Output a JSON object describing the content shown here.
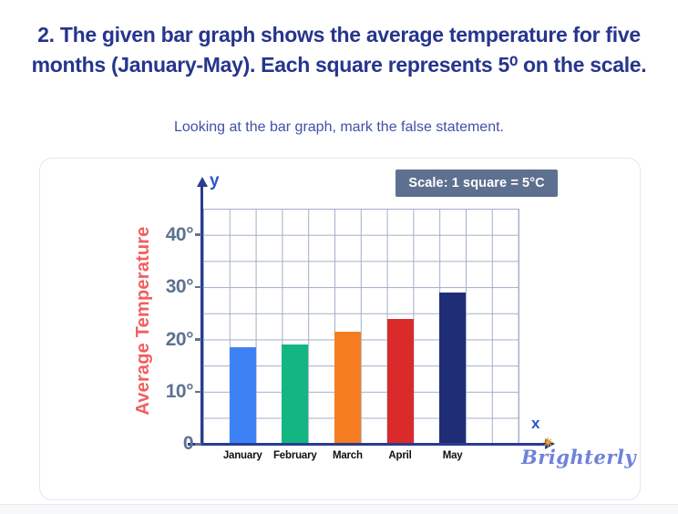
{
  "page": {
    "title_line1": "2. The given bar graph shows the average temperature for five",
    "title_line2": "months (January-May). Each square represents 5⁰ on the scale.",
    "subtitle": "Looking at the bar graph, mark the false statement."
  },
  "chart": {
    "scale_badge": "Scale: 1 square = 5°C",
    "y_axis_letter": "y",
    "x_axis_letter": "x",
    "brand": "Brighterly",
    "colors": {
      "title_navy": "#26358d",
      "subtitle_blue": "#4150a8",
      "axis_navy": "#2b3b8f",
      "grid_line": "#a2aec9",
      "tick_slate": "#5d7291",
      "y_title_red": "#f25f5f",
      "badge_bg": "#5e7090",
      "axis_letter_blue": "#2f55c8",
      "brand_periwinkle": "#6e82da"
    }
  },
  "chart_data": {
    "type": "bar",
    "title": "Average temperature for five months (January-May)",
    "categories": [
      "January",
      "February",
      "March",
      "April",
      "May"
    ],
    "values": [
      18.5,
      19,
      21.5,
      24,
      29
    ],
    "unit": "°C",
    "square_degrees": 5,
    "bar_colors": [
      "#3d82f4",
      "#13b581",
      "#f57d1f",
      "#da2a2a",
      "#1f2d77"
    ],
    "ylabel": "Average Temperature",
    "xlabel": "",
    "yticks": [
      40,
      30,
      20,
      10,
      0
    ],
    "ytick_labels": [
      "40°",
      "30°",
      "20°",
      "10°",
      "0"
    ],
    "ylim": [
      0,
      45
    ],
    "grid": {
      "cols": 12,
      "rows": 9
    },
    "legend": "none"
  }
}
